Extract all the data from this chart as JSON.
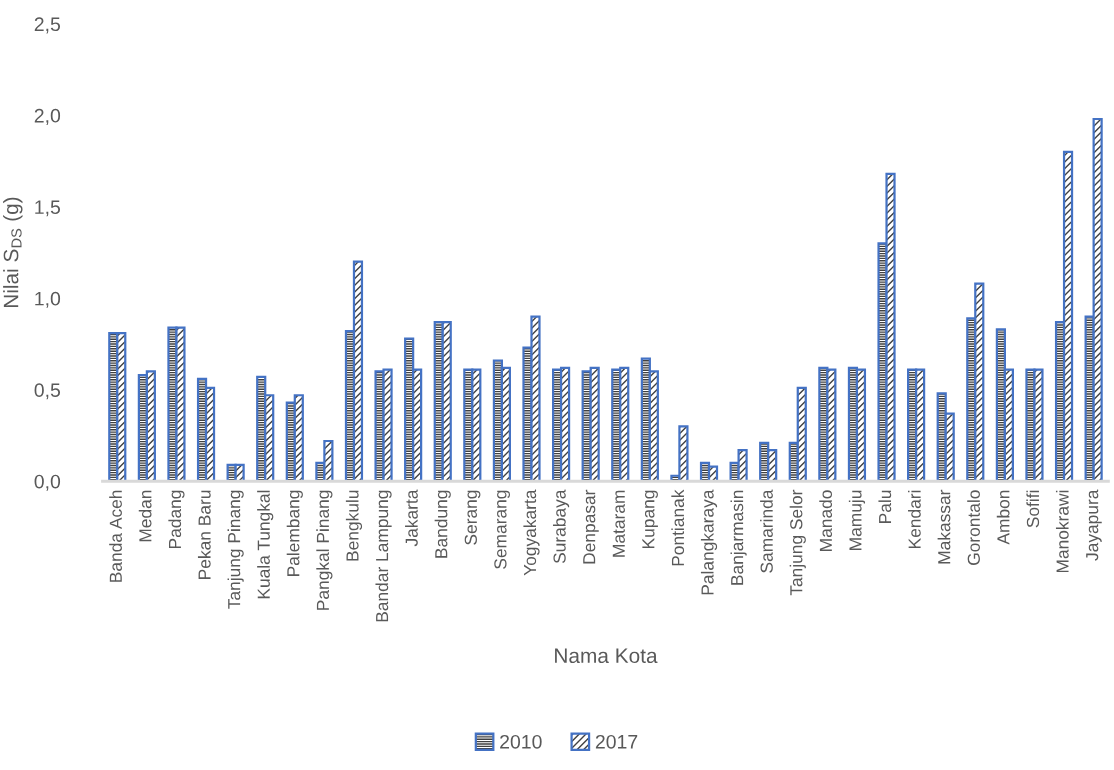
{
  "chart_data": {
    "type": "bar",
    "xlabel": "Nama Kota",
    "ylabel": "Nilai S$_{DS}$ (g)",
    "categories": [
      "Banda Aceh",
      "Medan",
      "Padang",
      "Pekan Baru",
      "Tanjung Pinang",
      "Kuala Tungkal",
      "Palembang",
      "Pangkal Pinang",
      "Bengkulu",
      "Bandar Lampung",
      "Jakarta",
      "Bandung",
      "Serang",
      "Semarang",
      "Yogyakarta",
      "Surabaya",
      "Denpasar",
      "Mataram",
      "Kupang",
      "Pontianak",
      "Palangkaraya",
      "Banjarmasin",
      "Samarinda",
      "Tanjung Selor",
      "Manado",
      "Mamuju",
      "Palu",
      "Kendari",
      "Makassar",
      "Gorontalo",
      "Ambon",
      "Sofifi",
      "Manokrawi",
      "Jayapura"
    ],
    "series": [
      {
        "name": "2010",
        "color": "#4472c4",
        "values": [
          0.81,
          0.58,
          0.84,
          0.56,
          0.09,
          0.57,
          0.43,
          0.1,
          0.82,
          0.6,
          0.78,
          0.87,
          0.61,
          0.66,
          0.73,
          0.61,
          0.6,
          0.61,
          0.67,
          0.03,
          0.1,
          0.1,
          0.21,
          0.21,
          0.62,
          0.62,
          1.3,
          0.61,
          0.48,
          0.89,
          0.83,
          0.61,
          0.87,
          0.9
        ]
      },
      {
        "name": "2017",
        "color": "#4472c4",
        "values": [
          0.81,
          0.6,
          0.84,
          0.51,
          0.09,
          0.47,
          0.47,
          0.22,
          1.2,
          0.61,
          0.61,
          0.87,
          0.61,
          0.62,
          0.9,
          0.62,
          0.62,
          0.62,
          0.6,
          0.3,
          0.08,
          0.17,
          0.17,
          0.51,
          0.61,
          0.61,
          1.68,
          0.61,
          0.37,
          1.08,
          0.61,
          0.61,
          1.8,
          1.98
        ]
      }
    ],
    "ylim": [
      0,
      2.5
    ],
    "yticks": [
      {
        "value": 0,
        "label": "0,0"
      },
      {
        "value": 0.5,
        "label": "0,5"
      },
      {
        "value": 1.0,
        "label": "1,0"
      },
      {
        "value": 1.5,
        "label": "1,5"
      },
      {
        "value": 2.0,
        "label": "2,0"
      },
      {
        "value": 2.5,
        "label": "2,5"
      }
    ],
    "grid": false,
    "legend": "bottom"
  }
}
